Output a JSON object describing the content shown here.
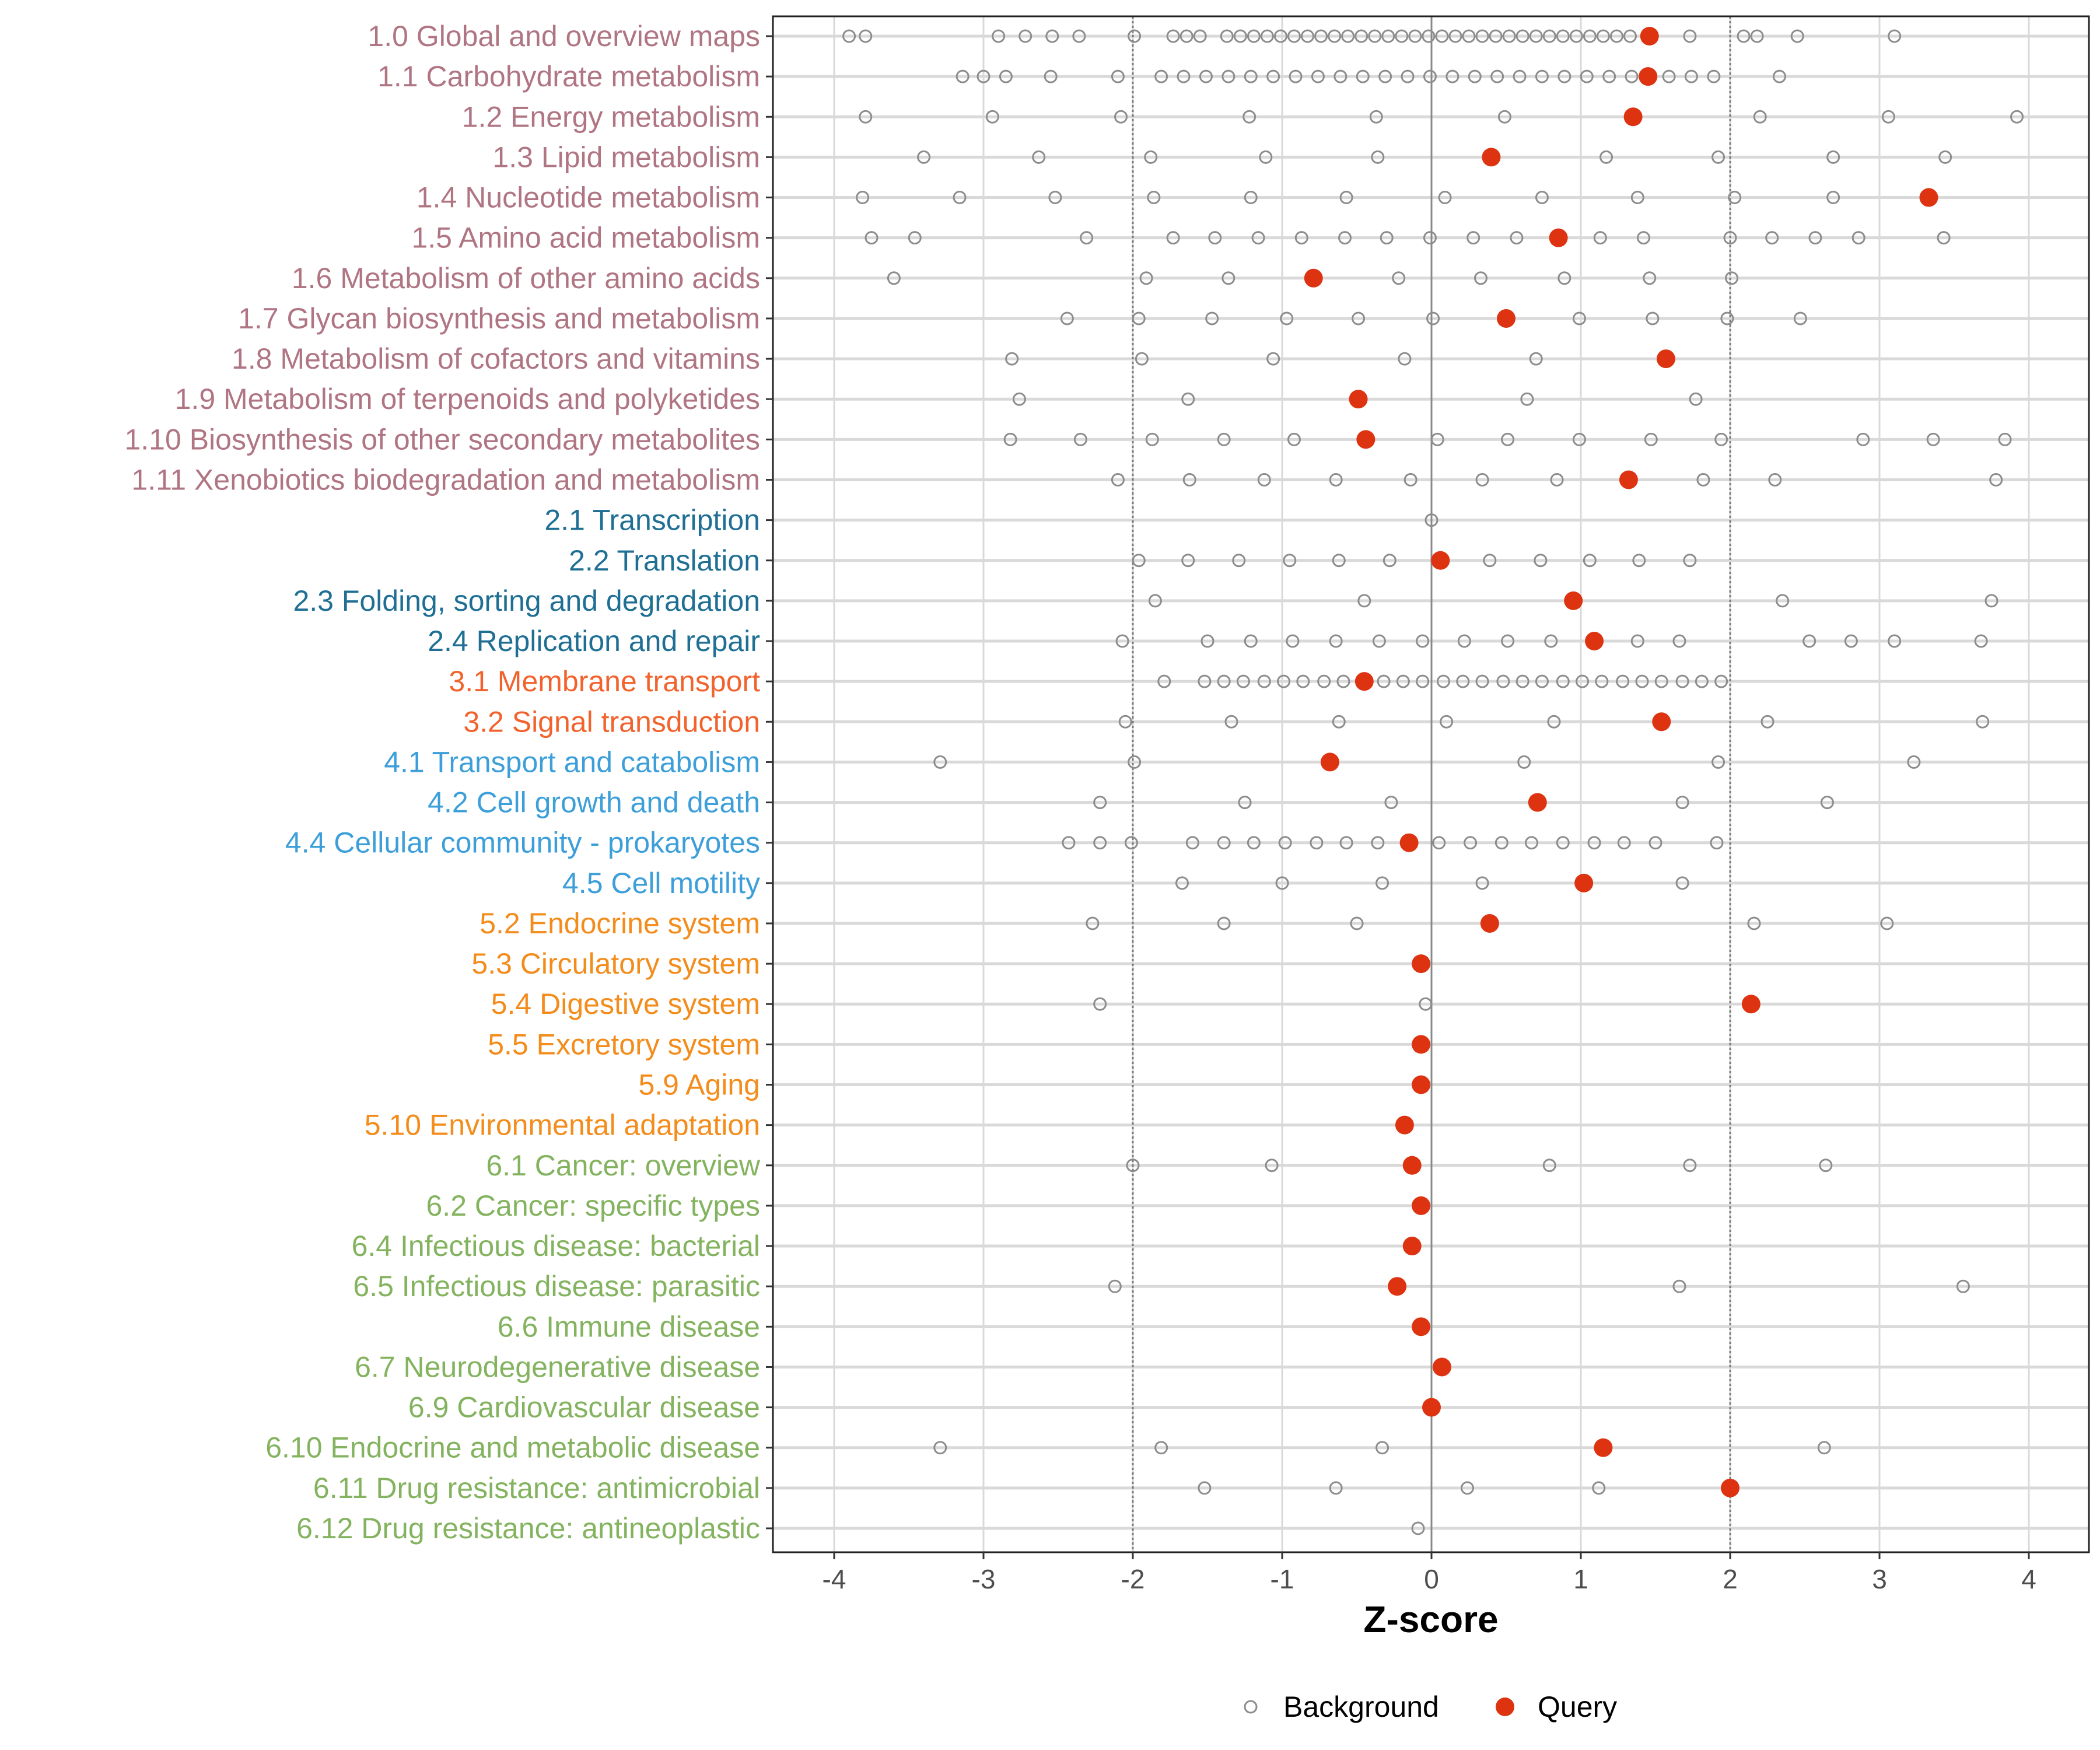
{
  "chart_data": {
    "type": "scatter",
    "title": "",
    "xlabel": "Z-score",
    "ylabel": "",
    "xlim": [
      -4.4,
      4.4
    ],
    "xticks": [
      -4,
      -3,
      -2,
      -1,
      0,
      1,
      2,
      3,
      4
    ],
    "xtick_labels": [
      "-4",
      "-3",
      "-2",
      "-1",
      "0",
      "1",
      "2",
      "3",
      "4"
    ],
    "reference_lines": {
      "dotted": [
        -2,
        2
      ],
      "solid": [
        0
      ]
    },
    "grid": true,
    "legend": {
      "placement": "bottom",
      "entries": [
        {
          "label": "Background",
          "marker": "open-circle",
          "color": "#8c8c8c"
        },
        {
          "label": "Query",
          "marker": "filled-circle",
          "color": "#dd3311"
        }
      ]
    },
    "group_colors": {
      "1": "#b07583",
      "2": "#1f6f94",
      "3": "#f2622c",
      "4": "#3d9fd9",
      "5": "#f38c1b",
      "6": "#84b35f"
    },
    "categories": [
      {
        "label": "1.0 Global and overview maps",
        "group": "1",
        "query": 1.46,
        "background": [
          -3.9,
          -3.79,
          -2.9,
          -2.72,
          -2.54,
          -2.36,
          -1.99,
          -1.73,
          -1.64,
          -1.55,
          -1.37,
          -1.28,
          -1.19,
          -1.1,
          -1.01,
          -0.92,
          -0.83,
          -0.74,
          -0.65,
          -0.56,
          -0.47,
          -0.38,
          -0.29,
          -0.2,
          -0.11,
          -0.02,
          0.07,
          0.16,
          0.25,
          0.34,
          0.43,
          0.52,
          0.61,
          0.7,
          0.79,
          0.88,
          0.97,
          1.06,
          1.15,
          1.24,
          1.33,
          1.73,
          2.09,
          2.18,
          2.45,
          3.1
        ]
      },
      {
        "label": "1.1 Carbohydrate metabolism",
        "group": "1",
        "query": 1.45,
        "background": [
          -3.14,
          -3.0,
          -2.85,
          -2.55,
          -2.1,
          -1.81,
          -1.66,
          -1.51,
          -1.36,
          -1.21,
          -1.06,
          -0.91,
          -0.76,
          -0.61,
          -0.46,
          -0.31,
          -0.16,
          -0.01,
          0.14,
          0.29,
          0.44,
          0.59,
          0.74,
          0.89,
          1.04,
          1.19,
          1.34,
          1.59,
          1.74,
          1.89,
          2.33
        ]
      },
      {
        "label": "1.2 Energy metabolism",
        "group": "1",
        "query": 1.35,
        "background": [
          -3.79,
          -2.94,
          -2.08,
          -1.22,
          -0.37,
          0.49,
          2.2,
          3.06,
          3.92
        ]
      },
      {
        "label": "1.3 Lipid metabolism",
        "group": "1",
        "query": 0.4,
        "background": [
          -3.4,
          -2.63,
          -1.88,
          -1.11,
          -0.36,
          1.17,
          1.92,
          2.69,
          3.44
        ]
      },
      {
        "label": "1.4 Nucleotide metabolism",
        "group": "1",
        "query": 3.33,
        "background": [
          -3.81,
          -3.16,
          -2.52,
          -1.86,
          -1.21,
          -0.57,
          0.09,
          0.74,
          1.38,
          2.03,
          2.69
        ]
      },
      {
        "label": "1.5 Amino acid metabolism",
        "group": "1",
        "query": 0.85,
        "background": [
          -3.75,
          -3.46,
          -2.31,
          -1.73,
          -1.45,
          -1.16,
          -0.87,
          -0.58,
          -0.3,
          -0.01,
          0.28,
          0.57,
          1.13,
          1.42,
          2.0,
          2.28,
          2.57,
          2.86,
          3.43
        ]
      },
      {
        "label": "1.6 Metabolism of other amino acids",
        "group": "1",
        "query": -0.79,
        "background": [
          -3.6,
          -1.91,
          -1.36,
          -0.22,
          0.33,
          0.89,
          1.46,
          2.01
        ]
      },
      {
        "label": "1.7 Glycan biosynthesis and metabolism",
        "group": "1",
        "query": 0.5,
        "background": [
          -2.44,
          -1.96,
          -1.47,
          -0.97,
          -0.49,
          0.01,
          0.99,
          1.48,
          1.98,
          2.47
        ]
      },
      {
        "label": "1.8 Metabolism of cofactors and vitamins",
        "group": "1",
        "query": 1.57,
        "background": [
          -2.81,
          -1.94,
          -1.06,
          -0.18,
          0.7
        ]
      },
      {
        "label": "1.9 Metabolism of terpenoids and polyketides",
        "group": "1",
        "query": -0.49,
        "background": [
          -2.76,
          -1.63,
          0.64,
          1.77
        ]
      },
      {
        "label": "1.10 Biosynthesis of other secondary metabolites",
        "group": "1",
        "query": -0.44,
        "background": [
          -2.82,
          -2.35,
          -1.87,
          -1.39,
          -0.92,
          0.04,
          0.51,
          0.99,
          1.47,
          1.94,
          2.89,
          3.36,
          3.84
        ]
      },
      {
        "label": "1.11 Xenobiotics biodegradation and metabolism",
        "group": "1",
        "query": 1.32,
        "background": [
          -2.1,
          -1.62,
          -1.12,
          -0.64,
          -0.14,
          0.34,
          0.84,
          1.82,
          2.3,
          3.78
        ]
      },
      {
        "label": "2.1 Transcription",
        "group": "2",
        "query": null,
        "background": [
          0.0
        ]
      },
      {
        "label": "2.2 Translation",
        "group": "2",
        "query": 0.06,
        "background": [
          -1.96,
          -1.63,
          -1.29,
          -0.95,
          -0.62,
          -0.28,
          0.39,
          0.73,
          1.06,
          1.39,
          1.73
        ]
      },
      {
        "label": "2.3 Folding, sorting and degradation",
        "group": "2",
        "query": 0.95,
        "background": [
          -1.85,
          -0.45,
          2.35,
          3.75
        ]
      },
      {
        "label": "2.4 Replication and repair",
        "group": "2",
        "query": 1.09,
        "background": [
          -2.07,
          -1.5,
          -1.21,
          -0.93,
          -0.64,
          -0.35,
          -0.06,
          0.22,
          0.51,
          0.8,
          1.38,
          1.66,
          2.53,
          2.81,
          3.1,
          3.68
        ]
      },
      {
        "label": "3.1 Membrane transport",
        "group": "3",
        "query": -0.45,
        "background": [
          -1.79,
          -1.52,
          -1.39,
          -1.26,
          -1.12,
          -0.99,
          -0.86,
          -0.72,
          -0.59,
          -0.46,
          -0.32,
          -0.19,
          -0.06,
          0.08,
          0.21,
          0.34,
          0.48,
          0.61,
          0.74,
          0.88,
          1.01,
          1.14,
          1.28,
          1.41,
          1.54,
          1.68,
          1.81,
          1.94
        ]
      },
      {
        "label": "3.2 Signal transduction",
        "group": "3",
        "query": 1.54,
        "background": [
          -2.05,
          -1.34,
          -0.62,
          0.1,
          0.82,
          2.25,
          3.69
        ]
      },
      {
        "label": "4.1 Transport and catabolism",
        "group": "4",
        "query": -0.68,
        "background": [
          -3.29,
          -1.99,
          0.62,
          1.92,
          3.23
        ]
      },
      {
        "label": "4.2 Cell growth and death",
        "group": "4",
        "query": 0.71,
        "background": [
          -2.22,
          -1.25,
          -0.27,
          1.68,
          2.65
        ]
      },
      {
        "label": "4.4 Cellular community - prokaryotes",
        "group": "4",
        "query": -0.15,
        "background": [
          -2.43,
          -2.22,
          -2.01,
          -1.6,
          -1.39,
          -1.19,
          -0.98,
          -0.77,
          -0.57,
          -0.36,
          0.05,
          0.26,
          0.47,
          0.67,
          0.88,
          1.09,
          1.29,
          1.5,
          1.91
        ]
      },
      {
        "label": "4.5 Cell motility",
        "group": "4",
        "query": 1.02,
        "background": [
          -1.67,
          -1.0,
          -0.33,
          0.34,
          1.68
        ]
      },
      {
        "label": "5.2 Endocrine system",
        "group": "5",
        "query": 0.39,
        "background": [
          -2.27,
          -1.39,
          -0.5,
          2.16,
          3.05
        ]
      },
      {
        "label": "5.3 Circulatory system",
        "group": "5",
        "query": -0.07,
        "background": []
      },
      {
        "label": "5.4 Digestive system",
        "group": "5",
        "query": 2.14,
        "background": [
          -2.22,
          -0.04
        ]
      },
      {
        "label": "5.5 Excretory system",
        "group": "5",
        "query": -0.07,
        "background": []
      },
      {
        "label": "5.9 Aging",
        "group": "5",
        "query": -0.07,
        "background": []
      },
      {
        "label": "5.10 Environmental adaptation",
        "group": "5",
        "query": -0.18,
        "background": []
      },
      {
        "label": "6.1 Cancer: overview",
        "group": "6",
        "query": -0.13,
        "background": [
          -2.0,
          -1.07,
          0.79,
          1.73,
          2.64
        ]
      },
      {
        "label": "6.2 Cancer: specific types",
        "group": "6",
        "query": -0.07,
        "background": []
      },
      {
        "label": "6.4 Infectious disease: bacterial",
        "group": "6",
        "query": -0.13,
        "background": []
      },
      {
        "label": "6.5 Infectious disease: parasitic",
        "group": "6",
        "query": -0.23,
        "background": [
          -2.12,
          1.66,
          3.56
        ]
      },
      {
        "label": "6.6 Immune disease",
        "group": "6",
        "query": -0.07,
        "background": []
      },
      {
        "label": "6.7 Neurodegenerative disease",
        "group": "6",
        "query": 0.07,
        "background": []
      },
      {
        "label": "6.9 Cardiovascular disease",
        "group": "6",
        "query": 0.0,
        "background": []
      },
      {
        "label": "6.10 Endocrine and metabolic disease",
        "group": "6",
        "query": 1.15,
        "background": [
          -3.29,
          -1.81,
          -0.33,
          2.63
        ]
      },
      {
        "label": "6.11 Drug resistance: antimicrobial",
        "group": "6",
        "query": 2.0,
        "background": [
          -1.52,
          -0.64,
          0.24,
          1.12
        ]
      },
      {
        "label": "6.12 Drug resistance: antineoplastic",
        "group": "6",
        "query": null,
        "background": [
          -0.09
        ]
      }
    ]
  }
}
